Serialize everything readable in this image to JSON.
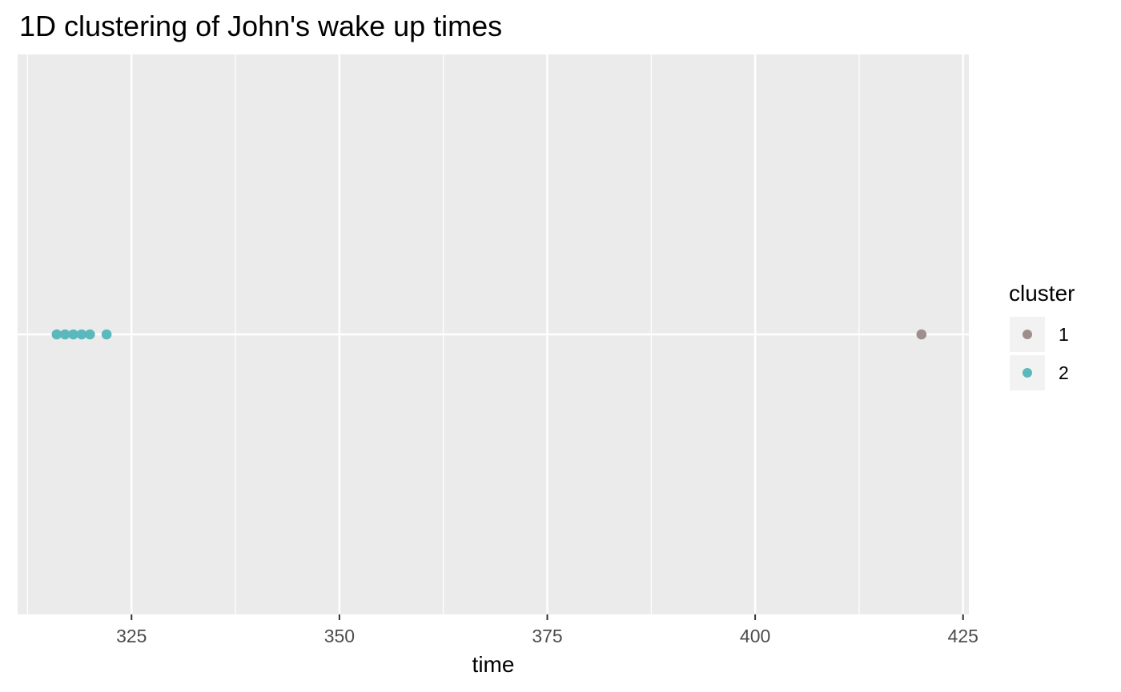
{
  "chart_data": {
    "type": "scatter",
    "title": "1D clustering of John's wake up times",
    "xlabel": "time",
    "ylabel": "",
    "xlim": [
      311.3,
      425.7
    ],
    "x_ticks": [
      325,
      350,
      375,
      400,
      425
    ],
    "x_tick_labels": [
      "325",
      "350",
      "375",
      "400",
      "425"
    ],
    "grid": true,
    "legend": {
      "title": "cluster",
      "placement": "right",
      "entries": [
        {
          "label": "1",
          "color": "#9c8f8c"
        },
        {
          "label": "2",
          "color": "#5bb8bc"
        }
      ]
    },
    "series": [
      {
        "cluster": "1",
        "color": "#9c8f8c",
        "x": [
          420
        ]
      },
      {
        "cluster": "2",
        "color": "#5bb8bc",
        "x": [
          316,
          317,
          318,
          319,
          320,
          322
        ]
      }
    ]
  }
}
